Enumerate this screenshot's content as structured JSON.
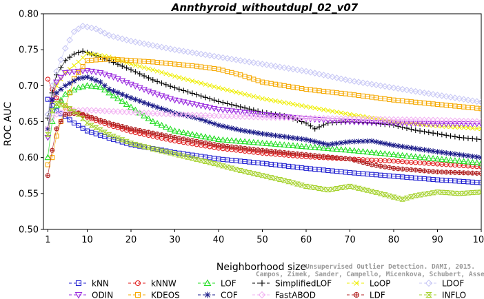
{
  "chart_data": {
    "type": "line",
    "title": "Annthyroid_withoutdupl_02_v07",
    "xlabel": "Neighborhood size",
    "ylabel": "ROC AUC",
    "xlim": [
      0,
      100
    ],
    "ylim": [
      0.5,
      0.8
    ],
    "x_ticks": [
      1,
      10,
      20,
      30,
      40,
      50,
      60,
      70,
      80,
      90,
      100
    ],
    "y_ticks": [
      0.5,
      0.55,
      0.6,
      0.65,
      0.7,
      0.75,
      0.8
    ],
    "y_tick_labels": [
      "0.50",
      "0.55",
      "0.60",
      "0.65",
      "0.70",
      "0.75",
      "0.80"
    ],
    "grid": false,
    "legend_position": "bottom",
    "credit_lines": [
      "Unsupervised Outlier Detection. DAMI, 2015.",
      "Campos, Zimek, Sander, Campello, Micenkova, Schubert, Assent, Houle"
    ],
    "series": [
      {
        "name": "kNN",
        "color": "#1f1fd0",
        "marker": "square",
        "points": [
          [
            1,
            0.681
          ],
          [
            2,
            0.672
          ],
          [
            3,
            0.665
          ],
          [
            5,
            0.657
          ],
          [
            7,
            0.648
          ],
          [
            10,
            0.637
          ],
          [
            15,
            0.627
          ],
          [
            20,
            0.618
          ],
          [
            30,
            0.607
          ],
          [
            40,
            0.598
          ],
          [
            50,
            0.592
          ],
          [
            60,
            0.585
          ],
          [
            70,
            0.579
          ],
          [
            80,
            0.574
          ],
          [
            90,
            0.569
          ],
          [
            100,
            0.565
          ]
        ]
      },
      {
        "name": "kNNW",
        "color": "#e01a1a",
        "marker": "circle",
        "points": [
          [
            1,
            0.709
          ],
          [
            2,
            0.695
          ],
          [
            3,
            0.683
          ],
          [
            5,
            0.672
          ],
          [
            7,
            0.664
          ],
          [
            10,
            0.656
          ],
          [
            15,
            0.645
          ],
          [
            20,
            0.636
          ],
          [
            30,
            0.623
          ],
          [
            40,
            0.613
          ],
          [
            50,
            0.606
          ],
          [
            60,
            0.601
          ],
          [
            70,
            0.598
          ],
          [
            80,
            0.595
          ],
          [
            90,
            0.591
          ],
          [
            100,
            0.587
          ]
        ]
      },
      {
        "name": "LOF",
        "color": "#22dd22",
        "marker": "triangle-up",
        "points": [
          [
            1,
            0.6
          ],
          [
            2,
            0.65
          ],
          [
            3,
            0.672
          ],
          [
            5,
            0.688
          ],
          [
            8,
            0.697
          ],
          [
            10,
            0.7
          ],
          [
            13,
            0.698
          ],
          [
            15,
            0.69
          ],
          [
            20,
            0.67
          ],
          [
            25,
            0.65
          ],
          [
            30,
            0.637
          ],
          [
            40,
            0.625
          ],
          [
            50,
            0.62
          ],
          [
            60,
            0.615
          ],
          [
            70,
            0.61
          ],
          [
            80,
            0.604
          ],
          [
            90,
            0.598
          ],
          [
            100,
            0.592
          ]
        ]
      },
      {
        "name": "SimplifiedLOF",
        "color": "#000000",
        "marker": "plus",
        "points": [
          [
            1,
            0.655
          ],
          [
            2,
            0.69
          ],
          [
            3,
            0.715
          ],
          [
            5,
            0.735
          ],
          [
            7,
            0.744
          ],
          [
            9,
            0.748
          ],
          [
            12,
            0.742
          ],
          [
            15,
            0.735
          ],
          [
            20,
            0.722
          ],
          [
            25,
            0.708
          ],
          [
            30,
            0.697
          ],
          [
            40,
            0.678
          ],
          [
            50,
            0.663
          ],
          [
            55,
            0.658
          ],
          [
            60,
            0.648
          ],
          [
            62,
            0.64
          ],
          [
            65,
            0.648
          ],
          [
            70,
            0.65
          ],
          [
            75,
            0.648
          ],
          [
            80,
            0.645
          ],
          [
            85,
            0.638
          ],
          [
            90,
            0.633
          ],
          [
            95,
            0.628
          ],
          [
            100,
            0.625
          ]
        ]
      },
      {
        "name": "LoOP",
        "color": "#eeee00",
        "marker": "x",
        "points": [
          [
            1,
            0.64
          ],
          [
            2,
            0.678
          ],
          [
            3,
            0.7
          ],
          [
            5,
            0.718
          ],
          [
            8,
            0.733
          ],
          [
            10,
            0.745
          ],
          [
            15,
            0.74
          ],
          [
            20,
            0.73
          ],
          [
            25,
            0.722
          ],
          [
            30,
            0.713
          ],
          [
            40,
            0.697
          ],
          [
            50,
            0.682
          ],
          [
            60,
            0.671
          ],
          [
            70,
            0.66
          ],
          [
            80,
            0.65
          ],
          [
            90,
            0.644
          ],
          [
            100,
            0.64
          ]
        ]
      },
      {
        "name": "LDOF",
        "color": "#c8c8f5",
        "marker": "diamond",
        "points": [
          [
            1,
            0.66
          ],
          [
            2,
            0.7
          ],
          [
            3,
            0.72
          ],
          [
            5,
            0.752
          ],
          [
            7,
            0.775
          ],
          [
            9,
            0.783
          ],
          [
            12,
            0.779
          ],
          [
            15,
            0.77
          ],
          [
            20,
            0.762
          ],
          [
            25,
            0.756
          ],
          [
            30,
            0.75
          ],
          [
            40,
            0.74
          ],
          [
            50,
            0.73
          ],
          [
            60,
            0.72
          ],
          [
            70,
            0.707
          ],
          [
            80,
            0.697
          ],
          [
            90,
            0.687
          ],
          [
            100,
            0.677
          ]
        ]
      },
      {
        "name": "ODIN",
        "color": "#9a2adf",
        "marker": "triangle-down",
        "points": [
          [
            1,
            0.628
          ],
          [
            2,
            0.68
          ],
          [
            3,
            0.705
          ],
          [
            5,
            0.718
          ],
          [
            8,
            0.72
          ],
          [
            10,
            0.721
          ],
          [
            13,
            0.718
          ],
          [
            16,
            0.712
          ],
          [
            20,
            0.702
          ],
          [
            25,
            0.69
          ],
          [
            30,
            0.68
          ],
          [
            40,
            0.667
          ],
          [
            50,
            0.66
          ],
          [
            60,
            0.654
          ],
          [
            70,
            0.65
          ],
          [
            80,
            0.648
          ],
          [
            90,
            0.647
          ],
          [
            100,
            0.647
          ]
        ]
      },
      {
        "name": "KDEOS",
        "color": "#f5a800",
        "marker": "square",
        "points": [
          [
            1,
            0.59
          ],
          [
            2,
            0.6
          ],
          [
            3,
            0.63
          ],
          [
            5,
            0.67
          ],
          [
            7,
            0.71
          ],
          [
            10,
            0.735
          ],
          [
            15,
            0.737
          ],
          [
            20,
            0.735
          ],
          [
            25,
            0.733
          ],
          [
            30,
            0.73
          ],
          [
            35,
            0.727
          ],
          [
            40,
            0.723
          ],
          [
            45,
            0.715
          ],
          [
            50,
            0.705
          ],
          [
            60,
            0.695
          ],
          [
            70,
            0.688
          ],
          [
            80,
            0.68
          ],
          [
            90,
            0.674
          ],
          [
            100,
            0.668
          ]
        ]
      },
      {
        "name": "COF",
        "color": "#1a1a88",
        "marker": "asterisk",
        "points": [
          [
            1,
            0.64
          ],
          [
            2,
            0.68
          ],
          [
            3,
            0.69
          ],
          [
            5,
            0.7
          ],
          [
            8,
            0.71
          ],
          [
            10,
            0.712
          ],
          [
            13,
            0.705
          ],
          [
            15,
            0.695
          ],
          [
            20,
            0.683
          ],
          [
            25,
            0.672
          ],
          [
            30,
            0.662
          ],
          [
            35,
            0.655
          ],
          [
            40,
            0.645
          ],
          [
            45,
            0.638
          ],
          [
            50,
            0.633
          ],
          [
            60,
            0.625
          ],
          [
            65,
            0.618
          ],
          [
            70,
            0.622
          ],
          [
            75,
            0.623
          ],
          [
            80,
            0.617
          ],
          [
            90,
            0.608
          ],
          [
            100,
            0.6
          ]
        ]
      },
      {
        "name": "FastABOD",
        "color": "#f2b2f2",
        "marker": "diamond",
        "points": [
          [
            1,
            0.64
          ],
          [
            2,
            0.655
          ],
          [
            3,
            0.66
          ],
          [
            5,
            0.665
          ],
          [
            10,
            0.666
          ],
          [
            20,
            0.663
          ],
          [
            30,
            0.66
          ],
          [
            40,
            0.658
          ],
          [
            50,
            0.656
          ],
          [
            60,
            0.655
          ],
          [
            70,
            0.654
          ],
          [
            80,
            0.653
          ],
          [
            90,
            0.652
          ],
          [
            100,
            0.65
          ]
        ]
      },
      {
        "name": "LDF",
        "color": "#b02020",
        "marker": "circle-plus",
        "points": [
          [
            1,
            0.575
          ],
          [
            2,
            0.61
          ],
          [
            3,
            0.64
          ],
          [
            5,
            0.66
          ],
          [
            8,
            0.662
          ],
          [
            10,
            0.658
          ],
          [
            15,
            0.648
          ],
          [
            20,
            0.64
          ],
          [
            30,
            0.628
          ],
          [
            40,
            0.617
          ],
          [
            50,
            0.61
          ],
          [
            60,
            0.604
          ],
          [
            70,
            0.598
          ],
          [
            75,
            0.59
          ],
          [
            80,
            0.585
          ],
          [
            90,
            0.58
          ],
          [
            100,
            0.578
          ]
        ]
      },
      {
        "name": "INFLO",
        "color": "#a6d22e",
        "marker": "hourglass",
        "points": [
          [
            1,
            0.632
          ],
          [
            2,
            0.665
          ],
          [
            3,
            0.675
          ],
          [
            5,
            0.672
          ],
          [
            8,
            0.66
          ],
          [
            10,
            0.648
          ],
          [
            15,
            0.632
          ],
          [
            20,
            0.62
          ],
          [
            25,
            0.612
          ],
          [
            30,
            0.605
          ],
          [
            40,
            0.59
          ],
          [
            45,
            0.582
          ],
          [
            50,
            0.575
          ],
          [
            55,
            0.568
          ],
          [
            60,
            0.56
          ],
          [
            65,
            0.555
          ],
          [
            70,
            0.56
          ],
          [
            75,
            0.553
          ],
          [
            80,
            0.545
          ],
          [
            82,
            0.542
          ],
          [
            85,
            0.547
          ],
          [
            90,
            0.552
          ],
          [
            95,
            0.55
          ],
          [
            100,
            0.552
          ]
        ]
      }
    ]
  }
}
